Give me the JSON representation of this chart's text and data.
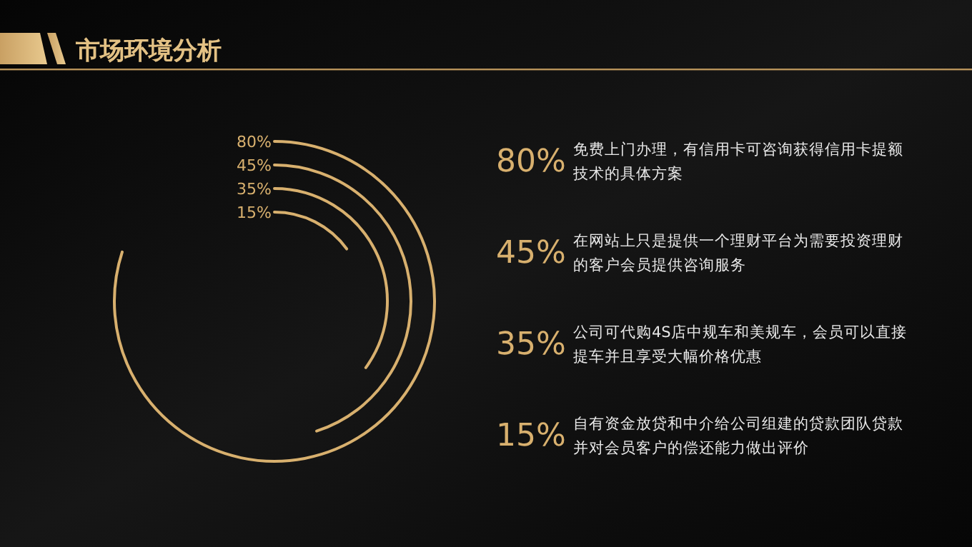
{
  "chart_data": {
    "type": "other",
    "title": "市场环境分析",
    "categories": [
      "免费上门办理，有信用卡可咨询获得信用卡提额技术的具体方案",
      "在网站上只是提供一个理财平台为需要投资理财的客户会员提供咨询服务",
      "公司可代购4S店中规车和美规车，会员可以直接提车并且享受大幅价格优惠",
      "自有资金放贷和中介给公司组建的贷款团队贷款并对会员客户的偿还能力做出评价"
    ],
    "values": [
      80,
      45,
      35,
      15
    ],
    "color": "#d8b06e",
    "value_labels": [
      "80%",
      "45%",
      "35%",
      "15%"
    ]
  }
}
